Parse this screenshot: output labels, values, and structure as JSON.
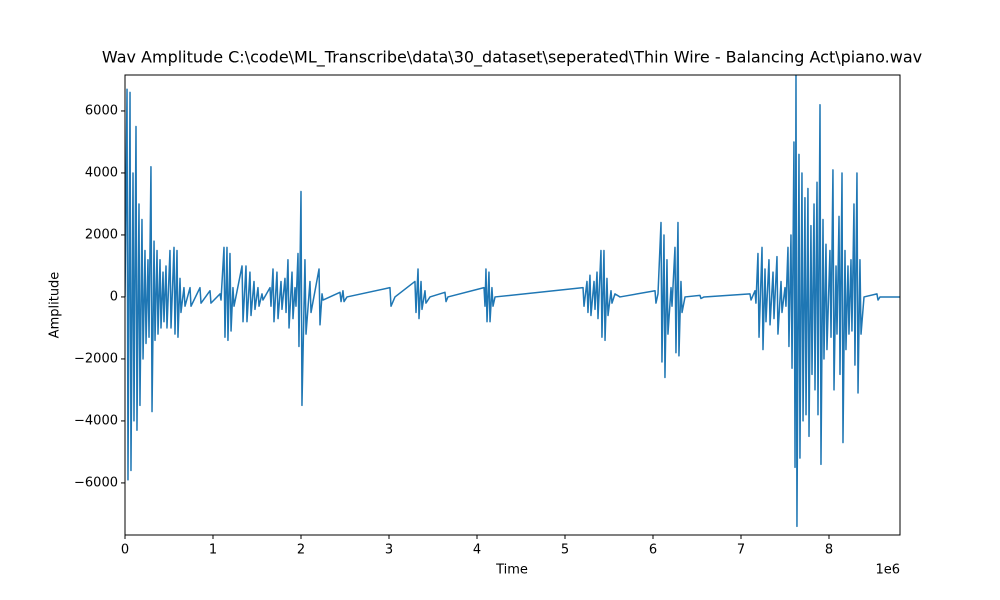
{
  "chart_data": {
    "type": "line",
    "title": "Wav Amplitude C:\\code\\ML_Transcribe\\data\\30_dataset\\seperated\\Thin Wire - Balancing Act\\piano.wav",
    "xlabel": "Time",
    "ylabel": "Amplitude",
    "x_offset_label": "1e6",
    "color": "#1f77b4",
    "grid": false,
    "xlim": [
      0,
      8807000
    ],
    "ylim": [
      -7680,
      7160
    ],
    "xticks": [
      0,
      {
        "value": 1000000,
        "label": "1"
      },
      {
        "value": 2000000,
        "label": "2"
      },
      {
        "value": 3000000,
        "label": "3"
      },
      {
        "value": 4000000,
        "label": "4"
      },
      {
        "value": 5000000,
        "label": "5"
      },
      {
        "value": 6000000,
        "label": "6"
      },
      {
        "value": 7000000,
        "label": "7"
      },
      {
        "value": 8000000,
        "label": "8"
      }
    ],
    "yticks": [
      {
        "value": -6000,
        "label": "−6000"
      },
      {
        "value": -4000,
        "label": "−4000"
      },
      {
        "value": -2000,
        "label": "−2000"
      },
      0,
      2000,
      4000,
      6000
    ],
    "x": [
      0,
      23000,
      34000,
      57000,
      68000,
      91000,
      102000,
      125000,
      136000,
      159000,
      170000,
      193000,
      205000,
      227000,
      239000,
      261000,
      273000,
      295000,
      307000,
      330000,
      341000,
      364000,
      375000,
      398000,
      409000,
      432000,
      443000,
      466000,
      477000,
      511000,
      523000,
      557000,
      568000,
      591000,
      602000,
      625000,
      636000,
      670000,
      682000,
      739000,
      750000,
      852000,
      864000,
      966000,
      977000,
      1080000,
      1091000,
      1125000,
      1136000,
      1159000,
      1170000,
      1193000,
      1205000,
      1227000,
      1239000,
      1330000,
      1341000,
      1375000,
      1386000,
      1420000,
      1432000,
      1466000,
      1477000,
      1511000,
      1523000,
      1557000,
      1568000,
      1648000,
      1659000,
      1682000,
      1693000,
      1727000,
      1739000,
      1773000,
      1784000,
      1818000,
      1830000,
      1852000,
      1864000,
      1898000,
      1909000,
      1932000,
      1943000,
      1966000,
      1977000,
      2000000,
      2011000,
      2045000,
      2057000,
      2102000,
      2114000,
      2205000,
      2216000,
      2239000,
      2250000,
      2443000,
      2455000,
      2477000,
      2489000,
      2523000,
      3011000,
      3023000,
      3068000,
      3295000,
      3307000,
      3330000,
      3341000,
      3364000,
      3375000,
      3409000,
      3420000,
      3466000,
      3636000,
      3648000,
      3670000,
      4080000,
      4091000,
      4102000,
      4114000,
      4136000,
      4148000,
      4170000,
      4182000,
      4205000,
      5205000,
      5216000,
      5250000,
      5261000,
      5284000,
      5295000,
      5330000,
      5341000,
      5364000,
      5375000,
      5409000,
      5420000,
      5443000,
      5455000,
      5477000,
      5489000,
      5523000,
      5534000,
      5568000,
      5625000,
      6023000,
      6034000,
      6057000,
      6091000,
      6102000,
      6125000,
      6136000,
      6159000,
      6170000,
      6205000,
      6216000,
      6250000,
      6261000,
      6284000,
      6295000,
      6318000,
      6330000,
      6364000,
      6534000,
      6545000,
      6580000,
      7102000,
      7114000,
      7159000,
      7170000,
      7193000,
      7205000,
      7239000,
      7250000,
      7273000,
      7284000,
      7318000,
      7330000,
      7364000,
      7375000,
      7409000,
      7420000,
      7455000,
      7466000,
      7500000,
      7511000,
      7534000,
      7545000,
      7568000,
      7580000,
      7602000,
      7614000,
      7625000,
      7636000,
      7659000,
      7670000,
      7693000,
      7705000,
      7727000,
      7739000,
      7761000,
      7773000,
      7795000,
      7807000,
      7830000,
      7841000,
      7864000,
      7875000,
      7898000,
      7909000,
      7932000,
      7943000,
      7966000,
      7977000,
      8011000,
      8023000,
      8045000,
      8057000,
      8080000,
      8091000,
      8114000,
      8125000,
      8148000,
      8159000,
      8182000,
      8193000,
      8216000,
      8227000,
      8250000,
      8261000,
      8284000,
      8295000,
      8318000,
      8330000,
      8352000,
      8364000,
      8398000,
      8545000,
      8557000,
      8580000,
      8807000
    ],
    "values": [
      0,
      6700,
      -5900,
      6600,
      -5600,
      4000,
      -4000,
      5500,
      -4300,
      3000,
      -3500,
      2500,
      -2000,
      1500,
      -1500,
      1200,
      -1300,
      4200,
      -3700,
      1800,
      -1400,
      1500,
      -1200,
      1200,
      -1000,
      800,
      -800,
      1000,
      -1000,
      1500,
      -1000,
      1600,
      -1200,
      1500,
      -1300,
      600,
      -500,
      300,
      -300,
      300,
      -300,
      300,
      -200,
      200,
      -200,
      100,
      -100,
      1600,
      -1300,
      1600,
      -1400,
      1400,
      -1100,
      300,
      -300,
      1000,
      -800,
      1000,
      -800,
      800,
      -600,
      500,
      -400,
      300,
      -300,
      100,
      -100,
      300,
      -300,
      900,
      -800,
      800,
      -700,
      500,
      -400,
      600,
      -500,
      1200,
      -1000,
      800,
      -700,
      300,
      -300,
      1400,
      -1600,
      3400,
      -3500,
      1200,
      -1200,
      500,
      -500,
      900,
      -900,
      100,
      -100,
      150,
      -150,
      200,
      -150,
      0,
      300,
      -300,
      0,
      500,
      -500,
      900,
      -700,
      500,
      -400,
      200,
      -200,
      0,
      150,
      -150,
      0,
      300,
      -300,
      900,
      -800,
      800,
      -800,
      300,
      -300,
      0,
      300,
      -300,
      500,
      -500,
      700,
      -600,
      500,
      -400,
      800,
      -700,
      1500,
      -1300,
      1500,
      -1400,
      600,
      -600,
      200,
      -200,
      100,
      0,
      200,
      -200,
      100,
      2400,
      -2100,
      2000,
      -2600,
      1200,
      -1200,
      300,
      -300,
      1600,
      -1800,
      2400,
      -1900,
      500,
      -500,
      0,
      50,
      -50,
      0,
      100,
      -100,
      200,
      -200,
      1400,
      -1300,
      1600,
      -1700,
      900,
      -800,
      1200,
      -900,
      800,
      -700,
      1300,
      -1200,
      500,
      -500,
      300,
      -300,
      1600,
      -1600,
      2000,
      -2300,
      5000,
      -5500,
      7300,
      -7400,
      4600,
      -5200,
      4000,
      -4000,
      3200,
      -3800,
      3500,
      -4500,
      2300,
      -2500,
      3000,
      -3000,
      3700,
      -3800,
      6200,
      -5400,
      2500,
      -2000,
      1700,
      -1700,
      1500,
      -1300,
      4100,
      -3000,
      1000,
      -1200,
      2600,
      -2500,
      4000,
      -4700,
      1500,
      -1700,
      1000,
      -1200,
      1200,
      -1100,
      3000,
      -2200,
      4000,
      -3100,
      1200,
      -1200,
      0,
      100,
      -100,
      0,
      0
    ]
  }
}
